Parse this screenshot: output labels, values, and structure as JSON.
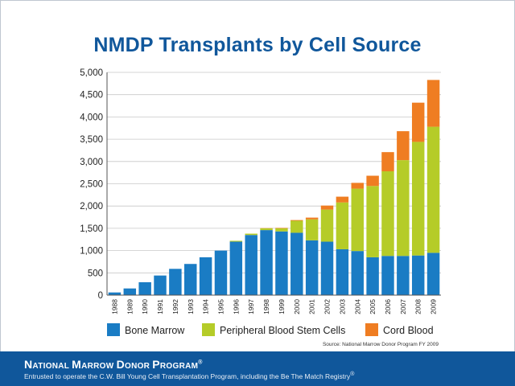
{
  "footer": {
    "org_first_letters": [
      "N",
      "M",
      "D",
      "P"
    ],
    "org_rest": [
      "ATIONAL ",
      "ARROW ",
      "ONOR ",
      "ROGRAM"
    ],
    "org_mark": "®",
    "tagline": "Entrusted to operate the C.W. Bill Young Cell Transplantation Program, including the Be The Match Registry",
    "tagline_mark": "®"
  },
  "colors": {
    "title": "#10579b",
    "bone_marrow": "#1a7cc4",
    "pbsc": "#b5cc28",
    "cord_blood": "#ef7d22",
    "footer": "#10579b"
  },
  "chart_data": {
    "type": "bar",
    "stacked": true,
    "title": "NMDP Transplants by Cell Source",
    "source": "Source: National Marrow Donor Program FY 2009",
    "xlabel": "",
    "ylabel": "",
    "ylim": [
      0,
      5000
    ],
    "yticks": [
      0,
      500,
      1000,
      1500,
      2000,
      2500,
      3000,
      3500,
      4000,
      4500,
      5000
    ],
    "ytick_labels": [
      "0",
      "500",
      "1,000",
      "1,500",
      "2,000",
      "2,500",
      "3,000",
      "3,500",
      "4,000",
      "4,500",
      "5,000"
    ],
    "grid": true,
    "legend_position": "bottom",
    "categories": [
      "1988",
      "1989",
      "1990",
      "1991",
      "1992",
      "1993",
      "1994",
      "1995",
      "1996",
      "1997",
      "1998",
      "1999",
      "2000",
      "2001",
      "2002",
      "2003",
      "2004",
      "2005",
      "2006",
      "2007",
      "2008",
      "2009"
    ],
    "series": [
      {
        "name": "Bone Marrow",
        "color": "#1a7cc4",
        "values": [
          60,
          150,
          290,
          440,
          590,
          700,
          850,
          1000,
          1200,
          1350,
          1460,
          1430,
          1400,
          1230,
          1200,
          1030,
          990,
          850,
          880,
          880,
          890,
          950
        ]
      },
      {
        "name": "Peripheral Blood Stem Cells",
        "color": "#b5cc28",
        "values": [
          0,
          0,
          0,
          0,
          0,
          0,
          0,
          0,
          20,
          30,
          40,
          70,
          270,
          470,
          720,
          1050,
          1400,
          1600,
          1900,
          2150,
          2550,
          2830
        ]
      },
      {
        "name": "Cord Blood",
        "color": "#ef7d22",
        "values": [
          0,
          0,
          0,
          0,
          0,
          0,
          0,
          0,
          0,
          0,
          5,
          10,
          15,
          40,
          90,
          130,
          130,
          230,
          430,
          650,
          880,
          1050
        ]
      }
    ]
  }
}
